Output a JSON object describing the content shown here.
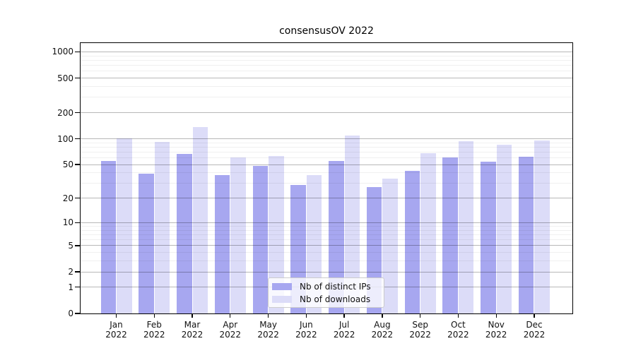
{
  "chart_data": {
    "type": "bar",
    "title": "consensusOV 2022",
    "categories": [
      "Jan 2022",
      "Feb 2022",
      "Mar 2022",
      "Apr 2022",
      "May 2022",
      "Jun 2022",
      "Jul 2022",
      "Aug 2022",
      "Sep 2022",
      "Oct 2022",
      "Nov 2022",
      "Dec 2022"
    ],
    "months": [
      "Jan",
      "Feb",
      "Mar",
      "Apr",
      "May",
      "Jun",
      "Jul",
      "Aug",
      "Sep",
      "Oct",
      "Nov",
      "Dec"
    ],
    "year": "2022",
    "series": [
      {
        "name": "Nb of distinct IPs",
        "color": "#a7a7f0",
        "values": [
          55,
          39,
          67,
          38,
          48,
          29,
          55,
          27,
          42,
          61,
          54,
          62
        ]
      },
      {
        "name": "Nb of downloads",
        "color": "#dcdcf8",
        "values": [
          101,
          92,
          136,
          61,
          63,
          38,
          108,
          34,
          68,
          94,
          85,
          95
        ]
      }
    ],
    "y_axis": {
      "scale": "log10(1+x)",
      "major_ticks": [
        0,
        1,
        2,
        5,
        10,
        20,
        50,
        100,
        200,
        500,
        1000
      ],
      "minor_gridlines": [
        3,
        4,
        6,
        7,
        8,
        9,
        30,
        40,
        60,
        70,
        80,
        90,
        300,
        400,
        600,
        700,
        800,
        900
      ],
      "ylim": [
        0,
        1300
      ]
    },
    "grid": true,
    "legend_position": "lower center"
  }
}
